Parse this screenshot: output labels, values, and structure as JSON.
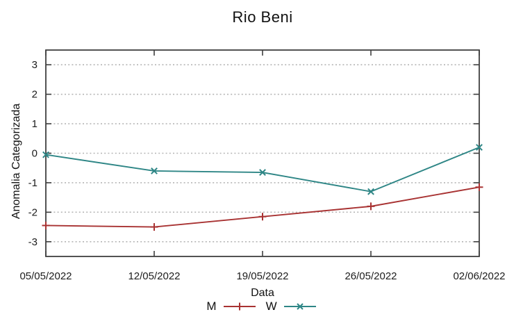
{
  "chart_data": {
    "type": "line",
    "title": "Rio Beni",
    "xlabel": "Data",
    "ylabel": "Anomalia Categorizada",
    "categories": [
      "05/05/2022",
      "12/05/2022",
      "19/05/2022",
      "26/05/2022",
      "02/06/2022"
    ],
    "series": [
      {
        "name": "M",
        "color": "#a83232",
        "marker": "plus",
        "values": [
          -2.45,
          -2.5,
          -2.15,
          -1.8,
          -1.15
        ]
      },
      {
        "name": "W",
        "color": "#2e8686",
        "marker": "cross",
        "values": [
          -0.05,
          -0.6,
          -0.65,
          -1.3,
          0.2
        ]
      }
    ],
    "yticks": [
      -3,
      -2,
      -1,
      0,
      1,
      2,
      3
    ],
    "ylim": [
      -3.5,
      3.5
    ],
    "grid": "horizontal-dotted",
    "legend_position": "bottom-center",
    "colors": {
      "border": "#3f3f3f",
      "grid": "#b5b5b5",
      "text": "#1c1c1c",
      "background": "#ffffff"
    }
  }
}
